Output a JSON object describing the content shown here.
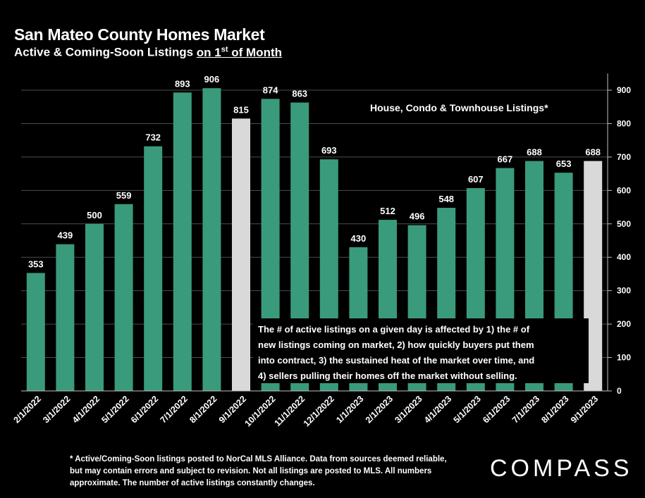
{
  "header": {
    "title": "San Mateo County Homes Market",
    "subtitle_prefix": "Active & Coming-Soon Listings ",
    "subtitle_underlined": "on 1",
    "subtitle_sup": "st",
    "subtitle_suffix": " of Month"
  },
  "chart_data": {
    "type": "bar",
    "title": "San Mateo County Homes Market",
    "subtitle": "Active & Coming-Soon Listings on 1st of Month",
    "legend_text": "House, Condo & Townhouse Listings*",
    "annotation": "The # of active listings on a given day is affected by 1) the # of new listings coming on market, 2) how quickly buyers put them into contract, 3) the sustained heat of the market over time, and 4) sellers pulling their homes off the market without selling.",
    "categories": [
      "2/1/2022",
      "3/1/2022",
      "4/1/2022",
      "5/1/2022",
      "6/1/2022",
      "7/1/2022",
      "8/1/2022",
      "9/1/2022",
      "10/1/2022",
      "11/1/2022",
      "12/1/2022",
      "1/1/2023",
      "2/1/2023",
      "3/1/2023",
      "4/1/2023",
      "5/1/2023",
      "6/1/2023",
      "7/1/2023",
      "8/1/2023",
      "9/1/2023"
    ],
    "values": [
      353,
      439,
      500,
      559,
      732,
      893,
      906,
      815,
      874,
      863,
      693,
      430,
      512,
      496,
      548,
      607,
      667,
      688,
      653,
      688
    ],
    "highlighted": [
      "9/1/2022",
      "9/1/2023"
    ],
    "bar_color": "#3a9a7c",
    "highlight_color": "#d9d9d9",
    "ylim": [
      0,
      950
    ],
    "yticks": [
      0,
      100,
      200,
      300,
      400,
      500,
      600,
      700,
      800,
      900
    ],
    "y_axis_side": "right",
    "grid": true
  },
  "footnote": "* Active/Coming-Soon listings posted to NorCal MLS Alliance.  Data from sources deemed reliable, but may contain errors and subject to revision.  Not all listings are posted to MLS. All numbers approximate. The number of active listings constantly changes.",
  "brand": {
    "logo_text": "COMPASS"
  }
}
